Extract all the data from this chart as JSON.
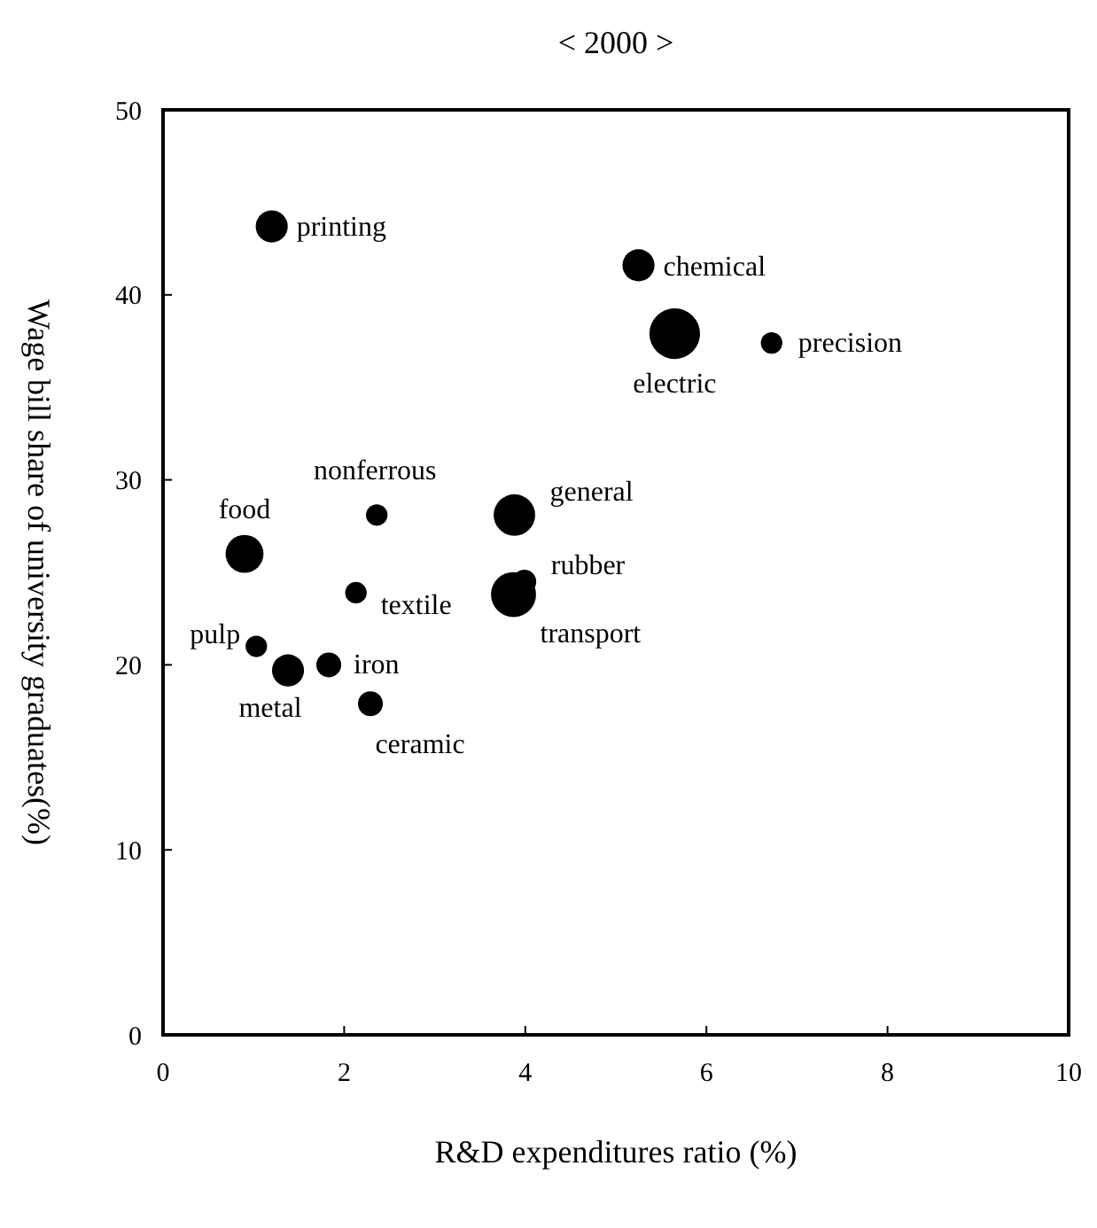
{
  "chart_data": {
    "type": "bubble",
    "title": "< 2000 >",
    "xlabel": "R&D expenditures ratio (%)",
    "ylabel": "Wage bill share of university graduates(%)",
    "xlim": [
      0,
      10
    ],
    "xticks": [
      0,
      2,
      4,
      6,
      8,
      10
    ],
    "ylim": [
      0,
      50
    ],
    "yticks": [
      0,
      10,
      20,
      30,
      40,
      50
    ],
    "grid": false,
    "series": [
      {
        "color": "#000000",
        "x": [
          1.2,
          5.25,
          5.65,
          6.72,
          2.36,
          3.88,
          0.9,
          2.13,
          3.99,
          3.87,
          1.03,
          1.38,
          1.83,
          2.29
        ],
        "values": [
          43.7,
          41.6,
          37.9,
          37.4,
          28.1,
          28.1,
          26.0,
          23.9,
          24.5,
          23.8,
          21.0,
          19.7,
          20.0,
          17.9
        ],
        "sizes": [
          0.4,
          0.4,
          1,
          0.18,
          0.18,
          0.67,
          0.56,
          0.18,
          0.22,
          0.79,
          0.18,
          0.4,
          0.24,
          0.24
        ]
      }
    ],
    "annotations": [
      {
        "text": "printing",
        "x": 1.2,
        "y": 43.7
      },
      {
        "text": "chemical",
        "x": 5.25,
        "y": 41.6
      },
      {
        "text": "electric",
        "x": 5.65,
        "y": 37.9
      },
      {
        "text": "precision",
        "x": 6.72,
        "y": 37.4
      },
      {
        "text": "nonferrous",
        "x": 2.36,
        "y": 28.1
      },
      {
        "text": "general",
        "x": 3.88,
        "y": 28.1
      },
      {
        "text": "food",
        "x": 0.9,
        "y": 26.0
      },
      {
        "text": "textile",
        "x": 2.13,
        "y": 23.9
      },
      {
        "text": "rubber",
        "x": 3.99,
        "y": 24.5
      },
      {
        "text": "transport",
        "x": 3.87,
        "y": 23.8
      },
      {
        "text": "pulp",
        "x": 1.03,
        "y": 21.0
      },
      {
        "text": "metal",
        "x": 1.38,
        "y": 19.7
      },
      {
        "text": "iron",
        "x": 1.83,
        "y": 20.0
      },
      {
        "text": "ceramic",
        "x": 2.29,
        "y": 17.9
      }
    ]
  }
}
